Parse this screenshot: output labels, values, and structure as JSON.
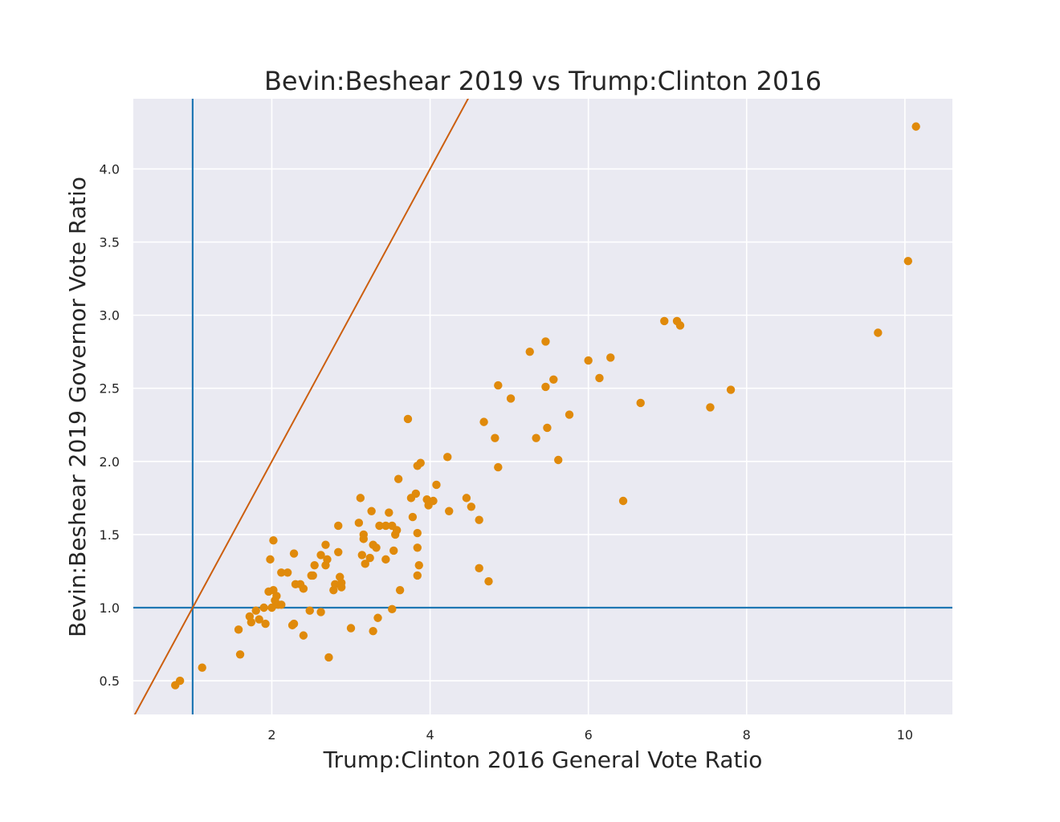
{
  "chart_data": {
    "type": "scatter",
    "title": "Bevin:Beshear 2019 vs Trump:Clinton 2016",
    "xlabel": "Trump:Clinton 2016 General Vote Ratio",
    "ylabel": "Bevin:Beshear 2019 Governor Vote Ratio",
    "xlim": [
      0.25,
      10.6
    ],
    "ylim": [
      0.27,
      4.48
    ],
    "xticks": [
      2,
      4,
      6,
      8,
      10
    ],
    "xtick_labels": [
      "2",
      "4",
      "6",
      "8",
      "10"
    ],
    "yticks": [
      0.5,
      1.0,
      1.5,
      2.0,
      2.5,
      3.0,
      3.5,
      4.0
    ],
    "ytick_labels": [
      "0.5",
      "1.0",
      "1.5",
      "2.0",
      "2.5",
      "3.0",
      "3.5",
      "4.0"
    ],
    "grid": true,
    "colors": {
      "points": "#e08a0b",
      "diagonal": "#cc5f0f",
      "reference": "#1f77b4",
      "background": "#eaeaf2",
      "grid": "#ffffff"
    },
    "reference_lines": {
      "vertical_x": 1.0,
      "horizontal_y": 1.0,
      "diagonal_slope": 1.0
    },
    "points": [
      [
        0.78,
        0.47
      ],
      [
        0.84,
        0.5
      ],
      [
        1.12,
        0.59
      ],
      [
        1.58,
        0.85
      ],
      [
        1.6,
        0.68
      ],
      [
        1.72,
        0.94
      ],
      [
        1.74,
        0.9
      ],
      [
        1.8,
        0.98
      ],
      [
        1.84,
        0.92
      ],
      [
        1.9,
        1.0
      ],
      [
        1.92,
        0.89
      ],
      [
        1.96,
        1.11
      ],
      [
        1.98,
        1.33
      ],
      [
        2.0,
        1.0
      ],
      [
        2.02,
        1.46
      ],
      [
        2.02,
        1.12
      ],
      [
        2.04,
        1.05
      ],
      [
        2.06,
        1.08
      ],
      [
        2.08,
        1.02
      ],
      [
        2.12,
        1.02
      ],
      [
        2.12,
        1.24
      ],
      [
        2.2,
        1.24
      ],
      [
        2.26,
        0.88
      ],
      [
        2.28,
        0.89
      ],
      [
        2.28,
        1.37
      ],
      [
        2.3,
        1.16
      ],
      [
        2.36,
        1.16
      ],
      [
        2.4,
        1.13
      ],
      [
        2.4,
        0.81
      ],
      [
        2.48,
        0.98
      ],
      [
        2.5,
        1.22
      ],
      [
        2.52,
        1.22
      ],
      [
        2.54,
        1.29
      ],
      [
        2.62,
        0.97
      ],
      [
        2.62,
        1.36
      ],
      [
        2.68,
        1.43
      ],
      [
        2.68,
        1.29
      ],
      [
        2.7,
        1.33
      ],
      [
        2.72,
        0.66
      ],
      [
        2.78,
        1.12
      ],
      [
        2.8,
        1.16
      ],
      [
        2.84,
        1.38
      ],
      [
        2.84,
        1.56
      ],
      [
        2.86,
        1.21
      ],
      [
        2.88,
        1.14
      ],
      [
        2.88,
        1.17
      ],
      [
        3.0,
        0.86
      ],
      [
        3.1,
        1.58
      ],
      [
        3.12,
        1.75
      ],
      [
        3.14,
        1.36
      ],
      [
        3.16,
        1.5
      ],
      [
        3.16,
        1.47
      ],
      [
        3.18,
        1.3
      ],
      [
        3.24,
        1.34
      ],
      [
        3.26,
        1.66
      ],
      [
        3.28,
        0.84
      ],
      [
        3.28,
        1.43
      ],
      [
        3.32,
        1.41
      ],
      [
        3.34,
        0.93
      ],
      [
        3.36,
        1.56
      ],
      [
        3.44,
        1.33
      ],
      [
        3.44,
        1.56
      ],
      [
        3.48,
        1.65
      ],
      [
        3.52,
        0.99
      ],
      [
        3.52,
        1.56
      ],
      [
        3.54,
        1.39
      ],
      [
        3.56,
        1.5
      ],
      [
        3.58,
        1.53
      ],
      [
        3.6,
        1.88
      ],
      [
        3.62,
        1.12
      ],
      [
        3.72,
        2.29
      ],
      [
        3.76,
        1.75
      ],
      [
        3.78,
        1.62
      ],
      [
        3.82,
        1.78
      ],
      [
        3.84,
        1.22
      ],
      [
        3.84,
        1.41
      ],
      [
        3.84,
        1.51
      ],
      [
        3.84,
        1.97
      ],
      [
        3.86,
        1.29
      ],
      [
        3.88,
        1.99
      ],
      [
        3.96,
        1.74
      ],
      [
        3.98,
        1.7
      ],
      [
        4.04,
        1.73
      ],
      [
        4.08,
        1.84
      ],
      [
        4.22,
        2.03
      ],
      [
        4.24,
        1.66
      ],
      [
        4.46,
        1.75
      ],
      [
        4.52,
        1.69
      ],
      [
        4.62,
        1.27
      ],
      [
        4.62,
        1.6
      ],
      [
        4.68,
        2.27
      ],
      [
        4.74,
        1.18
      ],
      [
        4.82,
        2.16
      ],
      [
        4.86,
        2.52
      ],
      [
        4.86,
        1.96
      ],
      [
        5.02,
        2.43
      ],
      [
        5.26,
        2.75
      ],
      [
        5.34,
        2.16
      ],
      [
        5.46,
        2.51
      ],
      [
        5.46,
        2.82
      ],
      [
        5.48,
        2.23
      ],
      [
        5.56,
        2.56
      ],
      [
        5.62,
        2.01
      ],
      [
        5.76,
        2.32
      ],
      [
        6.0,
        2.69
      ],
      [
        6.14,
        2.57
      ],
      [
        6.28,
        2.71
      ],
      [
        6.44,
        1.73
      ],
      [
        6.66,
        2.4
      ],
      [
        6.96,
        2.96
      ],
      [
        7.12,
        2.96
      ],
      [
        7.16,
        2.93
      ],
      [
        7.54,
        2.37
      ],
      [
        7.8,
        2.49
      ],
      [
        9.66,
        2.88
      ],
      [
        10.04,
        3.37
      ],
      [
        10.14,
        4.29
      ]
    ]
  }
}
